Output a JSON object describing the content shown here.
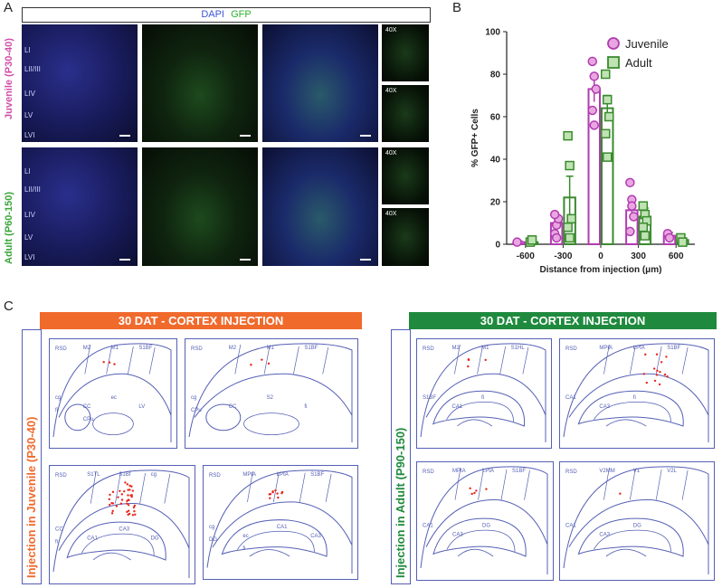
{
  "panel_letters": {
    "a": "A",
    "b": "B",
    "c": "C"
  },
  "panel_a": {
    "header_dapi": "DAPI",
    "header_gfp": "GFP",
    "row_juvenile_label": "Juvenile (P30-40)",
    "row_adult_label": "Adult (P60-150)",
    "layers": [
      "LI",
      "LII/III",
      "LIV",
      "LV",
      "LVI"
    ],
    "zoom_label": "40X",
    "colors": {
      "dapi": "#3b56d6",
      "gfp": "#2fb02f",
      "juvenile": "#d14fa9",
      "adult": "#3aa63a"
    }
  },
  "panel_c": {
    "banner_left": "30 DAT - CORTEX INJECTION",
    "banner_right": "30 DAT - CORTEX INJECTION",
    "side_left": "Injection in Juvenile (P30-40)",
    "side_right": "Injection in Adult (P90-150)",
    "colors": {
      "banner_left": "#f06a2c",
      "banner_right": "#1f8a3e",
      "side_left": "#f06a2c",
      "side_right": "#1f8a3e",
      "atlas_line": "#5560b5",
      "cells": "#e8261b"
    },
    "atlas_labels": {
      "j1": [
        "RSD",
        "M2",
        "M1",
        "S1BF",
        "cg",
        "CC",
        "ec",
        "LV",
        "fi",
        "CPu"
      ],
      "j2": [
        "RSD",
        "M2",
        "M1",
        "S1BF",
        "cg",
        "CC",
        "S2",
        "fi",
        "CPu"
      ],
      "j3": [
        "RSD",
        "S1TL",
        "S1Bf",
        "cg",
        "CC",
        "CA1",
        "CA3",
        "DG",
        "fi"
      ],
      "j4": [
        "RSD",
        "MPtA",
        "LPtA",
        "S1BF",
        "cg",
        "ec",
        "CA1",
        "CA3",
        "DG",
        "fi"
      ],
      "a1": [
        "RSD",
        "M2",
        "M1",
        "S1HL",
        "S1BF",
        "CA1",
        "fi"
      ],
      "a2": [
        "RSD",
        "MPtA",
        "LPtA",
        "S1BF",
        "CA1",
        "CA3",
        "fi"
      ],
      "a3": [
        "RSD",
        "MPtA",
        "LPtA",
        "S1BF",
        "CA1",
        "CA3",
        "DG"
      ],
      "a4": [
        "RSD",
        "V2MM",
        "V1",
        "V2L",
        "CA1",
        "CA3",
        "DG"
      ]
    }
  },
  "chart_data": {
    "type": "bar",
    "categories": [
      "-600",
      "-300",
      "0",
      "300",
      "600"
    ],
    "xlabel": "Distance from injection (μm)",
    "ylabel": "% GFP+ Cells",
    "ylim": [
      0,
      100
    ],
    "yticks": [
      0,
      20,
      40,
      60,
      80,
      100
    ],
    "legend_position": "top-right",
    "series": [
      {
        "name": "Juvenile",
        "color": "#b03cb0",
        "marker": "circle",
        "values": [
          1,
          10,
          73,
          16,
          4
        ],
        "errors": [
          0.5,
          3,
          6,
          4,
          1.5
        ],
        "points": [
          [
            1
          ],
          [
            5,
            9,
            12,
            14,
            3
          ],
          [
            86,
            79,
            73,
            63,
            56
          ],
          [
            29,
            21,
            13,
            6,
            18
          ],
          [
            5,
            3
          ]
        ]
      },
      {
        "name": "Adult",
        "color": "#3a8a2e",
        "marker": "square",
        "values": [
          1,
          22,
          64,
          13,
          2
        ],
        "errors": [
          0.5,
          10,
          6,
          4,
          1
        ],
        "points": [
          [
            1,
            2
          ],
          [
            51,
            37,
            12,
            8,
            3
          ],
          [
            80,
            68,
            60,
            52,
            41
          ],
          [
            18,
            14,
            11,
            8,
            4
          ],
          [
            3,
            1
          ]
        ]
      }
    ]
  }
}
